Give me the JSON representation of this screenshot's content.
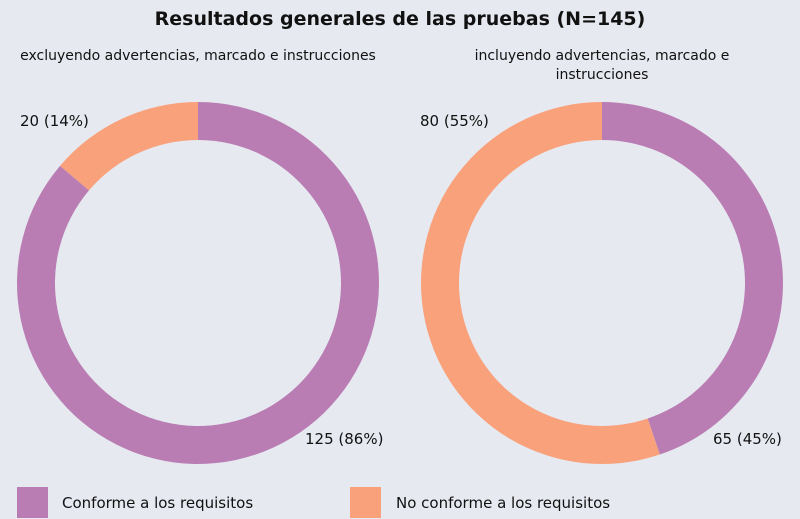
{
  "title": "Resultados generales de las pruebas (N=145)",
  "legend": [
    {
      "name": "Conforme a los requisitos",
      "color": "#b97db4"
    },
    {
      "name": "No conforme a los requisitos",
      "color": "#f9a17b"
    }
  ],
  "chart_data": [
    {
      "type": "pie",
      "subtitle": "excluyendo advertencias, marcado e instrucciones",
      "values": [
        125,
        20
      ],
      "value_labels": [
        "125 (86%)",
        "20 (14%)"
      ]
    },
    {
      "type": "pie",
      "subtitle": "incluyendo advertencias, marcado e instrucciones",
      "values": [
        65,
        80
      ],
      "value_labels": [
        "65 (45%)",
        "80 (55%)"
      ]
    }
  ]
}
